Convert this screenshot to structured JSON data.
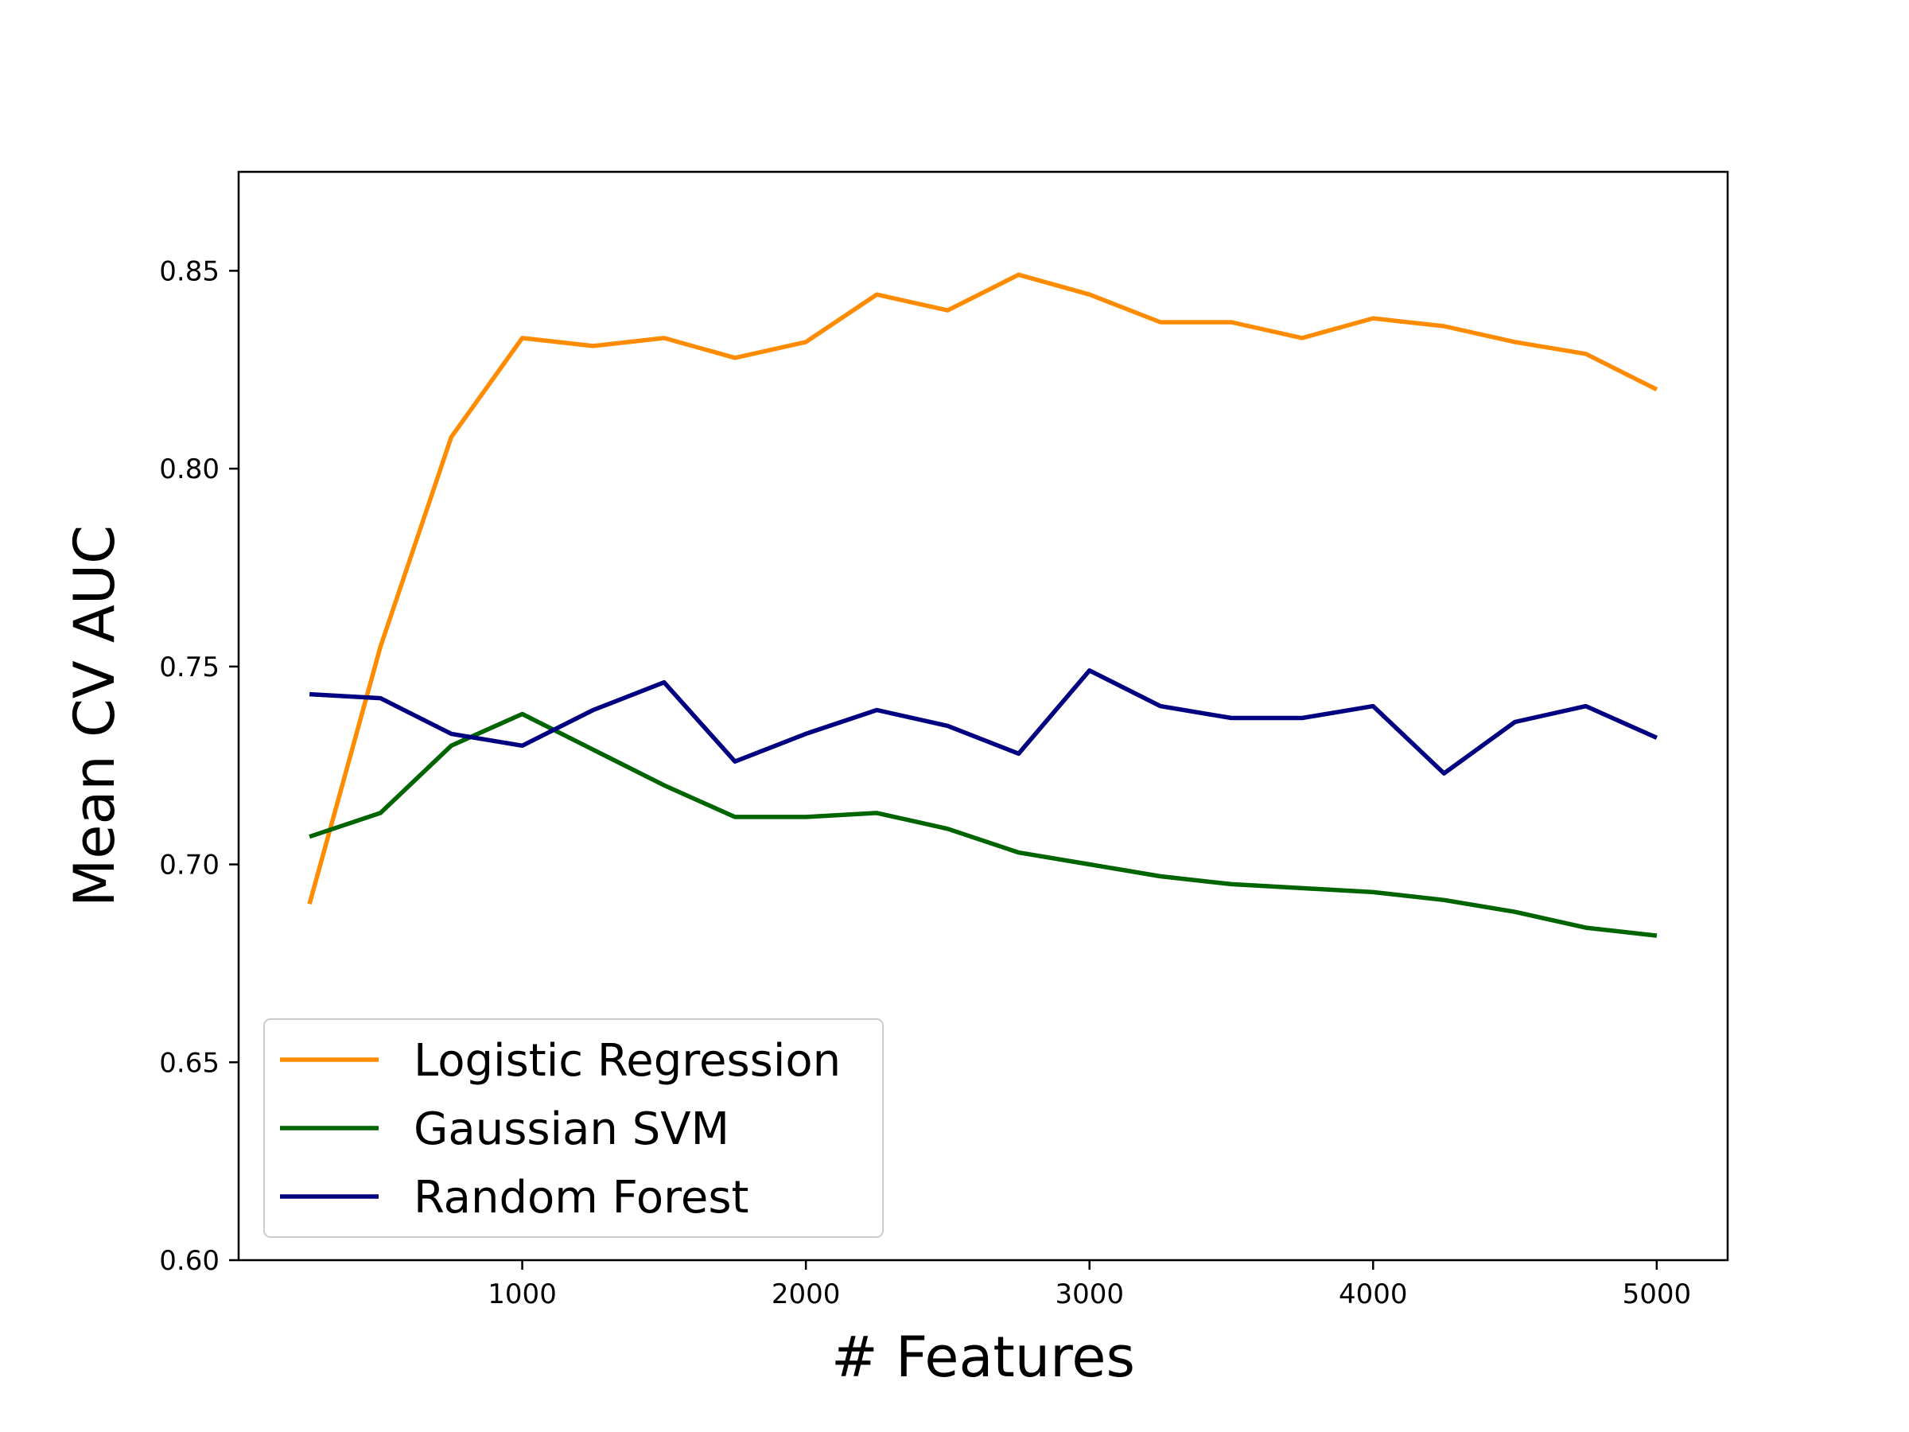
{
  "chart_data": {
    "type": "line",
    "xlabel": "# Features",
    "ylabel": "Mean CV AUC",
    "xlim": [
      0,
      5250
    ],
    "ylim": [
      0.6,
      0.875
    ],
    "xticks": [
      1000,
      2000,
      3000,
      4000,
      5000
    ],
    "yticks": [
      0.6,
      0.65,
      0.7,
      0.75,
      0.8,
      0.85
    ],
    "xtick_labels": [
      "1000",
      "2000",
      "3000",
      "4000",
      "5000"
    ],
    "ytick_labels": [
      "0.60",
      "0.65",
      "0.70",
      "0.75",
      "0.80",
      "0.85"
    ],
    "grid": false,
    "legend_position": "lower-left",
    "x": [
      250,
      500,
      750,
      1000,
      1250,
      1500,
      1750,
      2000,
      2250,
      2500,
      2750,
      3000,
      3250,
      3500,
      3750,
      4000,
      4250,
      4500,
      4750,
      5000
    ],
    "series": [
      {
        "name": "Logistic Regression",
        "color": "#ff8c00",
        "values": [
          0.69,
          0.755,
          0.808,
          0.833,
          0.831,
          0.833,
          0.828,
          0.832,
          0.844,
          0.84,
          0.849,
          0.844,
          0.837,
          0.837,
          0.833,
          0.838,
          0.836,
          0.832,
          0.829,
          0.82
        ]
      },
      {
        "name": "Gaussian SVM",
        "color": "#006400",
        "values": [
          0.707,
          0.713,
          0.73,
          0.738,
          0.729,
          0.72,
          0.712,
          0.712,
          0.713,
          0.709,
          0.703,
          0.7,
          0.697,
          0.695,
          0.694,
          0.693,
          0.691,
          0.688,
          0.684,
          0.682
        ]
      },
      {
        "name": "Random Forest",
        "color": "#000080",
        "values": [
          0.743,
          0.742,
          0.733,
          0.73,
          0.739,
          0.746,
          0.726,
          0.733,
          0.739,
          0.735,
          0.728,
          0.749,
          0.74,
          0.737,
          0.737,
          0.74,
          0.723,
          0.736,
          0.74,
          0.732
        ]
      }
    ]
  }
}
